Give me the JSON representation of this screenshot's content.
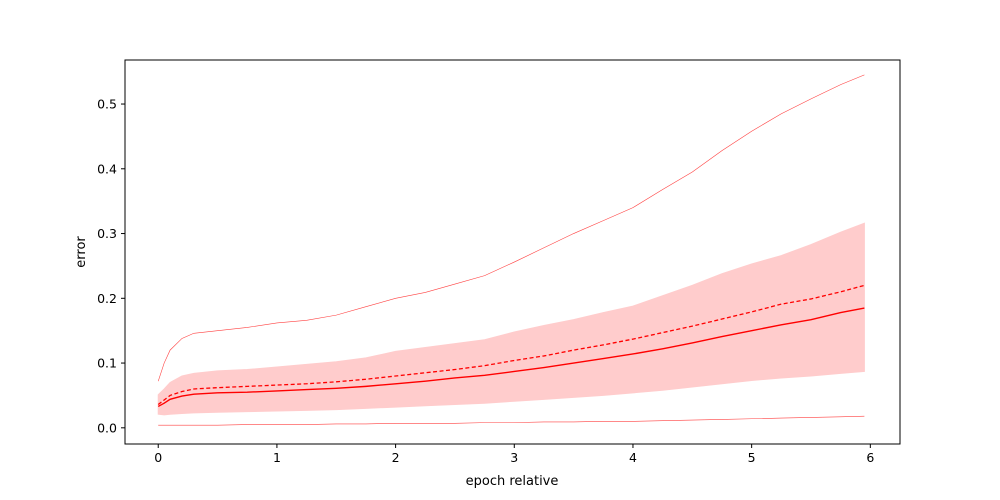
{
  "chart_data": {
    "type": "line",
    "title": "",
    "xlabel": "epoch relative",
    "ylabel": "error",
    "xlim": [
      -0.28,
      6.25
    ],
    "ylim": [
      -0.025,
      0.568
    ],
    "xticks": [
      0,
      1,
      2,
      3,
      4,
      5,
      6
    ],
    "xtick_labels": [
      "0",
      "1",
      "2",
      "3",
      "4",
      "5",
      "6"
    ],
    "yticks": [
      0.0,
      0.1,
      0.2,
      0.3,
      0.4,
      0.5
    ],
    "ytick_labels": [
      "0.0",
      "0.1",
      "0.2",
      "0.3",
      "0.4",
      "0.5"
    ],
    "grid": false,
    "color": "#ff0000",
    "band_color": "#ffcccc",
    "x": [
      0,
      0.05,
      0.1,
      0.2,
      0.3,
      0.5,
      0.75,
      1.0,
      1.25,
      1.5,
      1.75,
      2.0,
      2.25,
      2.5,
      2.75,
      3.0,
      3.25,
      3.5,
      3.75,
      4.0,
      4.25,
      4.5,
      4.75,
      5.0,
      5.25,
      5.5,
      5.75,
      5.95
    ],
    "series": [
      {
        "style": "solid",
        "values": [
          0.033,
          0.038,
          0.044,
          0.049,
          0.052,
          0.054,
          0.055,
          0.057,
          0.059,
          0.061,
          0.064,
          0.068,
          0.072,
          0.077,
          0.081,
          0.087,
          0.093,
          0.1,
          0.107,
          0.114,
          0.122,
          0.131,
          0.141,
          0.15,
          0.159,
          0.167,
          0.178,
          0.185
        ]
      },
      {
        "style": "dashed",
        "values": [
          0.036,
          0.043,
          0.05,
          0.056,
          0.06,
          0.062,
          0.064,
          0.066,
          0.068,
          0.071,
          0.075,
          0.08,
          0.085,
          0.09,
          0.096,
          0.104,
          0.111,
          0.12,
          0.128,
          0.137,
          0.147,
          0.157,
          0.168,
          0.179,
          0.191,
          0.199,
          0.21,
          0.22
        ]
      },
      {
        "style": "thin-upper",
        "values": [
          0.072,
          0.1,
          0.12,
          0.138,
          0.146,
          0.15,
          0.155,
          0.162,
          0.166,
          0.174,
          0.187,
          0.2,
          0.209,
          0.222,
          0.235,
          0.256,
          0.278,
          0.3,
          0.32,
          0.34,
          0.368,
          0.395,
          0.428,
          0.458,
          0.485,
          0.508,
          0.53,
          0.545
        ]
      },
      {
        "style": "thin-lower",
        "values": [
          0.004,
          0.004,
          0.004,
          0.004,
          0.004,
          0.004,
          0.005,
          0.005,
          0.005,
          0.006,
          0.006,
          0.007,
          0.007,
          0.007,
          0.008,
          0.008,
          0.009,
          0.009,
          0.01,
          0.01,
          0.011,
          0.012,
          0.013,
          0.014,
          0.015,
          0.016,
          0.017,
          0.018
        ]
      }
    ],
    "band": {
      "upper": [
        0.051,
        0.06,
        0.07,
        0.08,
        0.084,
        0.088,
        0.09,
        0.094,
        0.098,
        0.102,
        0.108,
        0.118,
        0.124,
        0.13,
        0.136,
        0.148,
        0.158,
        0.167,
        0.178,
        0.188,
        0.204,
        0.22,
        0.238,
        0.253,
        0.266,
        0.283,
        0.302,
        0.316
      ],
      "lower": [
        0.021,
        0.02,
        0.021,
        0.022,
        0.023,
        0.024,
        0.025,
        0.026,
        0.027,
        0.028,
        0.03,
        0.032,
        0.034,
        0.036,
        0.038,
        0.041,
        0.044,
        0.047,
        0.05,
        0.054,
        0.058,
        0.063,
        0.068,
        0.073,
        0.077,
        0.08,
        0.084,
        0.087
      ]
    }
  }
}
